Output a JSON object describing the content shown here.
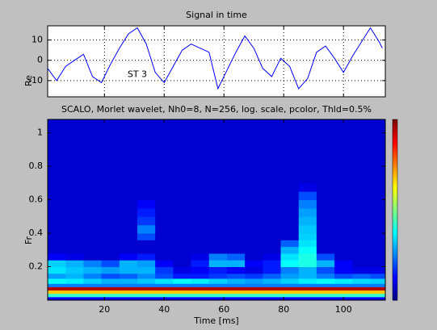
{
  "chart_data": [
    {
      "type": "line",
      "title": "Signal in time",
      "ylabel": "Re",
      "x": [
        1,
        4,
        7,
        10,
        13,
        16,
        19,
        22,
        25,
        28,
        31,
        34,
        37,
        40,
        43,
        46,
        49,
        52,
        55,
        58,
        61,
        64,
        67,
        70,
        73,
        76,
        79,
        82,
        85,
        88,
        91,
        94,
        97,
        100,
        103,
        106,
        109,
        112,
        113
      ],
      "series": [
        {
          "color": "#0000ff",
          "values": [
            -4,
            -10,
            -3,
            0,
            3,
            -8,
            -11,
            -2,
            6,
            13,
            16,
            8,
            -6,
            -11,
            -3,
            5,
            8,
            6,
            4,
            -14,
            -5,
            4,
            12,
            6,
            -4,
            -8,
            1,
            -3,
            -14,
            -9,
            4,
            7,
            1,
            -6,
            2,
            9,
            16,
            9,
            6
          ]
        }
      ],
      "xlim": [
        1,
        114
      ],
      "xticks": [
        20,
        40,
        60,
        80,
        100
      ],
      "xtick_labels": false,
      "ylim": [
        -18,
        17
      ],
      "yticks": [
        -10,
        0,
        10
      ],
      "grid": true,
      "annotations": [
        {
          "text": "ST 3",
          "x": 31,
          "y": -7
        }
      ]
    },
    {
      "type": "heatmap",
      "title": "SCALO, Morlet wavelet, Nh0=8, N=256, log. scale, pcolor, Thld=0.5%",
      "xlabel": "Time [ms]",
      "ylabel": "Fr",
      "x_edges": [
        1,
        7,
        13,
        19,
        25,
        31,
        37,
        43,
        49,
        55,
        61,
        67,
        73,
        79,
        85,
        91,
        97,
        103,
        109,
        114
      ],
      "y_edges": [
        0,
        0.02,
        0.04,
        0.06,
        0.08,
        0.1,
        0.13,
        0.16,
        0.2,
        0.24,
        0.28,
        0.32,
        0.36,
        0.4,
        0.45,
        0.5,
        0.55,
        0.6,
        0.65,
        0.7,
        1.08
      ],
      "z": [
        [
          0.12,
          0.12,
          0.12,
          0.12,
          0.12,
          0.12,
          0.12,
          0.12,
          0.12,
          0.12,
          0.12,
          0.12,
          0.12,
          0.12,
          0.12,
          0.12,
          0.12,
          0.12,
          0.12
        ],
        [
          0.42,
          0.42,
          0.42,
          0.42,
          0.42,
          0.42,
          0.42,
          0.42,
          0.42,
          0.42,
          0.42,
          0.42,
          0.42,
          0.42,
          0.42,
          0.42,
          0.42,
          0.42,
          0.42
        ],
        [
          0.68,
          0.68,
          0.68,
          0.68,
          0.68,
          0.68,
          0.68,
          0.68,
          0.68,
          0.68,
          0.68,
          0.68,
          0.68,
          0.68,
          0.68,
          0.68,
          0.68,
          0.68,
          0.68
        ],
        [
          0.95,
          0.95,
          0.95,
          0.95,
          0.95,
          0.95,
          0.95,
          0.95,
          0.95,
          0.95,
          0.95,
          0.95,
          0.95,
          0.95,
          0.95,
          0.95,
          0.95,
          0.95,
          0.95
        ],
        [
          0.25,
          0.25,
          0.25,
          0.25,
          0.25,
          0.25,
          0.25,
          0.25,
          0.25,
          0.25,
          0.25,
          0.25,
          0.25,
          0.25,
          0.25,
          0.25,
          0.25,
          0.25,
          0.25
        ],
        [
          0.38,
          0.36,
          0.33,
          0.3,
          0.3,
          0.32,
          0.35,
          0.38,
          0.36,
          0.33,
          0.3,
          0.28,
          0.3,
          0.33,
          0.36,
          0.38,
          0.36,
          0.34,
          0.33
        ],
        [
          0.28,
          0.3,
          0.25,
          0.2,
          0.22,
          0.26,
          0.2,
          0.15,
          0.15,
          0.18,
          0.2,
          0.18,
          0.22,
          0.28,
          0.3,
          0.25,
          0.2,
          0.22,
          0.2
        ],
        [
          0.35,
          0.32,
          0.3,
          0.28,
          0.3,
          0.3,
          0.18,
          0.1,
          0.12,
          0.15,
          0.12,
          0.1,
          0.15,
          0.25,
          0.3,
          0.2,
          0.12,
          0.1,
          0.1
        ],
        [
          0.33,
          0.3,
          0.25,
          0.2,
          0.3,
          0.28,
          0.12,
          0.08,
          0.15,
          0.3,
          0.3,
          0.12,
          0.15,
          0.38,
          0.4,
          0.3,
          0.12,
          0.08,
          0.08
        ],
        [
          0.12,
          0.1,
          0.08,
          0.08,
          0.12,
          0.15,
          0.08,
          0.08,
          0.1,
          0.25,
          0.22,
          0.08,
          0.1,
          0.35,
          0.4,
          0.2,
          0.08,
          0.08,
          0.08
        ],
        [
          0.08,
          0.08,
          0.08,
          0.08,
          0.08,
          0.08,
          0.08,
          0.08,
          0.08,
          0.08,
          0.08,
          0.08,
          0.08,
          0.3,
          0.38,
          0.08,
          0.08,
          0.08,
          0.08
        ],
        [
          0.08,
          0.08,
          0.08,
          0.08,
          0.08,
          0.08,
          0.08,
          0.08,
          0.08,
          0.08,
          0.08,
          0.08,
          0.08,
          0.22,
          0.35,
          0.08,
          0.08,
          0.08,
          0.08
        ],
        [
          0.08,
          0.08,
          0.08,
          0.08,
          0.08,
          0.2,
          0.08,
          0.08,
          0.08,
          0.08,
          0.08,
          0.08,
          0.08,
          0.08,
          0.33,
          0.08,
          0.08,
          0.08,
          0.08
        ],
        [
          0.08,
          0.08,
          0.08,
          0.08,
          0.08,
          0.25,
          0.08,
          0.08,
          0.08,
          0.08,
          0.08,
          0.08,
          0.08,
          0.08,
          0.32,
          0.08,
          0.08,
          0.08,
          0.08
        ],
        [
          0.08,
          0.08,
          0.08,
          0.08,
          0.08,
          0.18,
          0.08,
          0.08,
          0.08,
          0.08,
          0.08,
          0.08,
          0.08,
          0.08,
          0.3,
          0.08,
          0.08,
          0.08,
          0.08
        ],
        [
          0.08,
          0.08,
          0.08,
          0.08,
          0.08,
          0.15,
          0.08,
          0.08,
          0.08,
          0.08,
          0.08,
          0.08,
          0.08,
          0.08,
          0.28,
          0.08,
          0.08,
          0.08,
          0.08
        ],
        [
          0.08,
          0.08,
          0.08,
          0.08,
          0.08,
          0.12,
          0.08,
          0.08,
          0.08,
          0.08,
          0.08,
          0.08,
          0.08,
          0.08,
          0.25,
          0.08,
          0.08,
          0.08,
          0.08
        ],
        [
          0.08,
          0.08,
          0.08,
          0.08,
          0.08,
          0.08,
          0.08,
          0.08,
          0.08,
          0.08,
          0.08,
          0.08,
          0.08,
          0.08,
          0.2,
          0.08,
          0.08,
          0.08,
          0.08
        ],
        [
          0.08,
          0.08,
          0.08,
          0.08,
          0.08,
          0.08,
          0.08,
          0.08,
          0.08,
          0.08,
          0.08,
          0.08,
          0.08,
          0.08,
          0.1,
          0.08,
          0.08,
          0.08,
          0.08
        ],
        [
          0.08,
          0.08,
          0.08,
          0.08,
          0.08,
          0.08,
          0.08,
          0.08,
          0.08,
          0.08,
          0.08,
          0.08,
          0.08,
          0.08,
          0.08,
          0.08,
          0.08,
          0.08,
          0.08
        ]
      ],
      "colormap": "jet",
      "clim": [
        0,
        1
      ],
      "colorbar": true,
      "xlim": [
        1,
        114
      ],
      "xticks": [
        20,
        40,
        60,
        80,
        100
      ],
      "ylim": [
        0,
        1.08
      ],
      "yticks": [
        0.2,
        0.4,
        0.6,
        0.8,
        1
      ]
    }
  ]
}
